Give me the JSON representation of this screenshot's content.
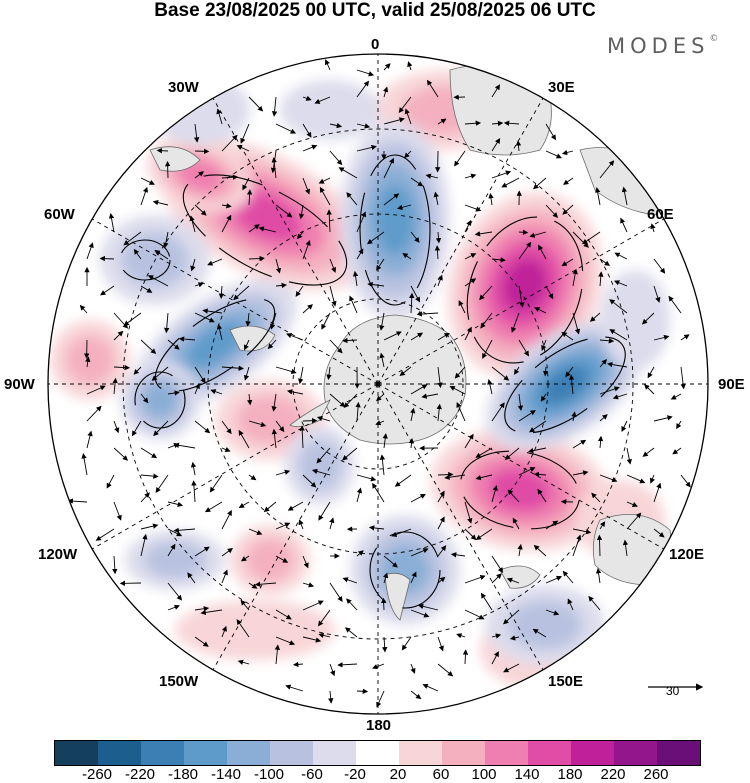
{
  "title": "Base 23/08/2025 00 UTC, valid 25/08/2025 06 UTC",
  "brand": "MODES",
  "brand_mark": "©",
  "longitude_labels": {
    "top": "0",
    "top_right": "30E",
    "right_upper": "60E",
    "right": "90E",
    "right_lower": "120E",
    "bottom_right": "150E",
    "bottom": "180",
    "bottom_left": "150W",
    "left_lower": "120W",
    "left": "90W",
    "left_upper": "60W",
    "top_left": "30W"
  },
  "reference_vector": {
    "value": "30"
  },
  "colorbar": {
    "colors": [
      "#143f5d",
      "#1c5f8e",
      "#3c7fb5",
      "#5e9bcb",
      "#8aaed6",
      "#b8c2e0",
      "#dcdcec",
      "#ffffff",
      "#f8d6d8",
      "#f4b0bf",
      "#ef7fb0",
      "#e04ca6",
      "#c0209a",
      "#94168c",
      "#6a0f78"
    ],
    "ticks": [
      "-260",
      "-220",
      "-180",
      "-140",
      "-100",
      "-60",
      "-20",
      "20",
      "60",
      "100",
      "140",
      "180",
      "220",
      "260"
    ]
  },
  "map_colors": {
    "land": "#e6e6e6",
    "coast": "#6b6b6b",
    "grid": "#000000",
    "arrows": "#000000"
  }
}
